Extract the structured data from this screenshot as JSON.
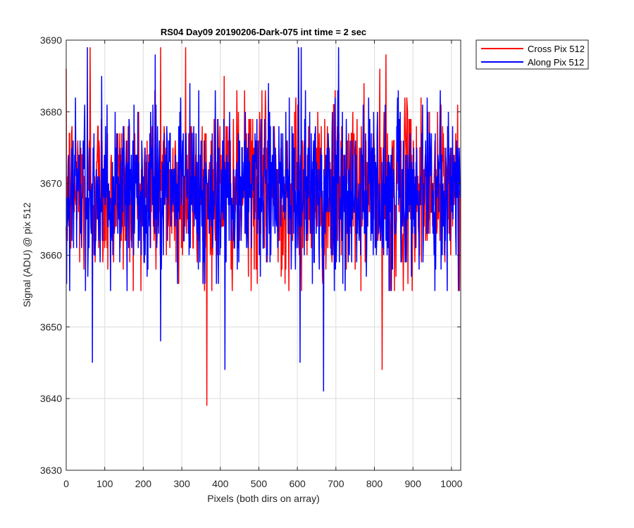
{
  "chart_data": {
    "type": "line",
    "title": "RS04 Day09 20190206-Dark-075 int time = 2 sec",
    "xlabel": "Pixels (both dirs on array)",
    "ylabel": "Signal (ADU) @ pix 512",
    "xlim": [
      0,
      1024
    ],
    "ylim": [
      3630,
      3690
    ],
    "xticks": [
      0,
      100,
      200,
      300,
      400,
      500,
      600,
      700,
      800,
      900,
      1000
    ],
    "yticks": [
      3630,
      3640,
      3650,
      3660,
      3670,
      3680,
      3690
    ],
    "grid": true,
    "legend_position": "outside top-right",
    "series_summary": [
      {
        "name": "Cross Pix 512",
        "color": "#ff0000",
        "n_points": 1024,
        "mean": 3669,
        "approx_std": 6,
        "observed_min": 3639,
        "observed_max": 3689
      },
      {
        "name": "Along Pix 512",
        "color": "#0000ff",
        "n_points": 1024,
        "mean": 3669,
        "approx_std": 6,
        "observed_min": 3641,
        "observed_max": 3689
      }
    ],
    "series": [
      {
        "name": "Cross Pix 512",
        "color": "#ff0000",
        "extremes": [
          [
            62,
            3689
          ],
          [
            245,
            3689
          ],
          [
            310,
            3689
          ],
          [
            365,
            3639
          ],
          [
            410,
            3685
          ],
          [
            820,
            3644
          ],
          [
            830,
            3688
          ]
        ]
      },
      {
        "name": "Along Pix 512",
        "color": "#0000ff",
        "extremes": [
          [
            55,
            3689
          ],
          [
            68,
            3645
          ],
          [
            245,
            3648
          ],
          [
            412,
            3644
          ],
          [
            603,
            3689
          ],
          [
            607,
            3645
          ],
          [
            668,
            3641
          ]
        ]
      }
    ]
  }
}
